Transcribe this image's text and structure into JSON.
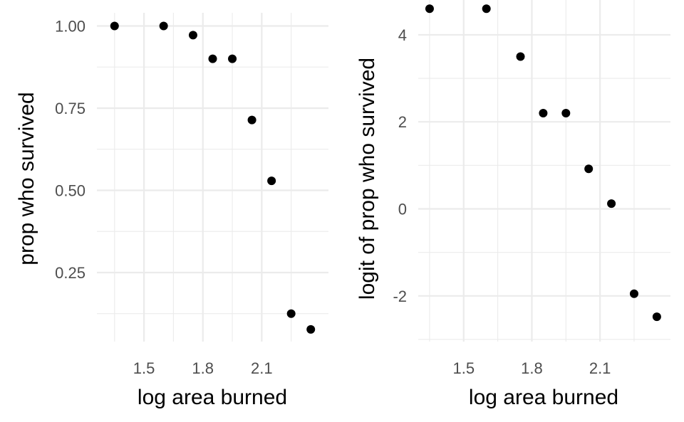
{
  "chart_data": [
    {
      "type": "scatter",
      "xlabel": "log area burned",
      "ylabel": "prop who survived",
      "xlim": [
        1.26,
        2.44
      ],
      "ylim": [
        0.04,
        1.04
      ],
      "x_ticks": [
        1.5,
        1.8,
        2.1
      ],
      "x_tick_labels": [
        "1.5",
        "1.8",
        "2.1"
      ],
      "y_ticks": [
        0.25,
        0.5,
        0.75,
        1.0
      ],
      "y_tick_labels": [
        "0.25",
        "0.50",
        "0.75",
        "1.00"
      ],
      "grid": true,
      "points": [
        {
          "x": 1.35,
          "y": 1.0
        },
        {
          "x": 1.6,
          "y": 1.0
        },
        {
          "x": 1.75,
          "y": 0.972
        },
        {
          "x": 1.85,
          "y": 0.9
        },
        {
          "x": 1.95,
          "y": 0.9
        },
        {
          "x": 2.05,
          "y": 0.714
        },
        {
          "x": 2.15,
          "y": 0.529
        },
        {
          "x": 2.25,
          "y": 0.125
        },
        {
          "x": 2.35,
          "y": 0.077
        }
      ]
    },
    {
      "type": "scatter",
      "xlabel": "log area burned",
      "ylabel": "logit of prop who survived",
      "xlim": [
        1.3,
        2.41
      ],
      "ylim": [
        -3.05,
        4.8
      ],
      "x_ticks": [
        1.5,
        1.8,
        2.1
      ],
      "x_tick_labels": [
        "1.5",
        "1.8",
        "2.1"
      ],
      "y_ticks": [
        -2,
        0,
        2,
        4
      ],
      "y_tick_labels": [
        "-2",
        "0",
        "2",
        "4"
      ],
      "grid": true,
      "points": [
        {
          "x": 1.35,
          "y": 4.6
        },
        {
          "x": 1.6,
          "y": 4.6
        },
        {
          "x": 1.75,
          "y": 3.5
        },
        {
          "x": 1.85,
          "y": 2.2
        },
        {
          "x": 1.95,
          "y": 2.2
        },
        {
          "x": 2.05,
          "y": 0.92
        },
        {
          "x": 2.15,
          "y": 0.12
        },
        {
          "x": 2.25,
          "y": -1.95
        },
        {
          "x": 2.35,
          "y": -2.48
        }
      ]
    }
  ]
}
